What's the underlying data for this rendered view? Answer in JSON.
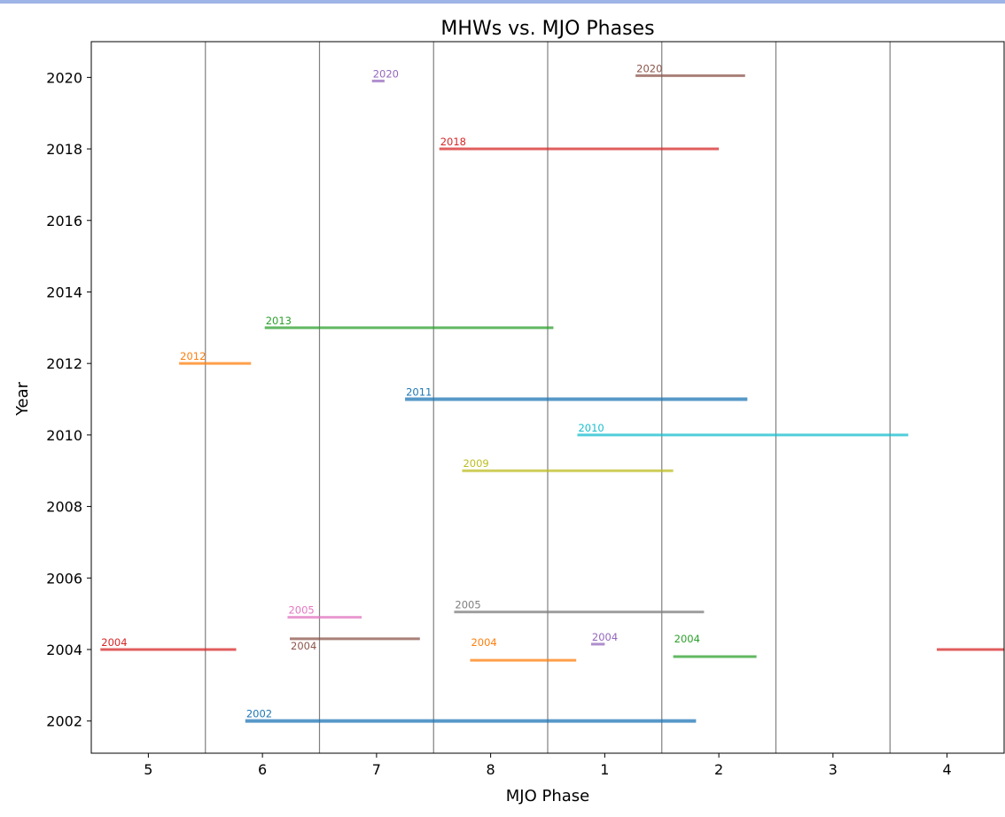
{
  "chart_data": {
    "type": "line",
    "title": "MHWs vs. MJO Phases",
    "xlabel": "MJO Phase",
    "ylabel": "Year",
    "xlim": [
      -0.5,
      7.5
    ],
    "ylim": [
      2001.1,
      2021.0
    ],
    "x_ticks": [
      {
        "pos": 0,
        "label": "5"
      },
      {
        "pos": 1,
        "label": "6"
      },
      {
        "pos": 2,
        "label": "7"
      },
      {
        "pos": 3,
        "label": "8"
      },
      {
        "pos": 4,
        "label": "1"
      },
      {
        "pos": 5,
        "label": "2"
      },
      {
        "pos": 6,
        "label": "3"
      },
      {
        "pos": 7,
        "label": "4"
      }
    ],
    "y_ticks": [
      2002,
      2004,
      2006,
      2008,
      2010,
      2012,
      2014,
      2016,
      2018,
      2020
    ],
    "phase_boundaries": [
      0.5,
      1.5,
      2.5,
      3.5,
      4.5,
      5.5,
      6.5
    ],
    "grid": false,
    "legend": "none",
    "series": [
      {
        "label": "2002",
        "x_start": 0.85,
        "x_end": 4.8,
        "y": 2002.0,
        "color": "#1f77b4",
        "width": 4
      },
      {
        "label": "2004",
        "x_start": -0.42,
        "x_end": 0.77,
        "y": 2004.0,
        "color": "#d62728",
        "width": 3
      },
      {
        "label": "2004",
        "x_start": 6.91,
        "x_end": 7.5,
        "y": 2004.0,
        "color": "#d62728",
        "width": 3,
        "show_label": false
      },
      {
        "label": "2004",
        "x_start": 1.24,
        "x_end": 2.38,
        "y": 2004.3,
        "color": "#8c564b",
        "width": 3,
        "label_below": true
      },
      {
        "label": "2004",
        "x_start": 2.82,
        "x_end": 3.75,
        "y": 2003.7,
        "color": "#ff7f0e",
        "width": 3,
        "label_above_gap": true
      },
      {
        "label": "2004",
        "x_start": 3.88,
        "x_end": 4.0,
        "y": 2004.15,
        "color": "#9467bd",
        "width": 3
      },
      {
        "label": "2004",
        "x_start": 4.6,
        "x_end": 5.33,
        "y": 2003.8,
        "color": "#2ca02c",
        "width": 3,
        "label_above_gap": true
      },
      {
        "label": "2005",
        "x_start": 1.22,
        "x_end": 1.87,
        "y": 2004.9,
        "color": "#e377c2",
        "width": 3
      },
      {
        "label": "2005",
        "x_start": 2.68,
        "x_end": 4.87,
        "y": 2005.05,
        "color": "#7f7f7f",
        "width": 3
      },
      {
        "label": "2009",
        "x_start": 2.75,
        "x_end": 4.6,
        "y": 2009.0,
        "color": "#bcbd22",
        "width": 3
      },
      {
        "label": "2010",
        "x_start": 3.76,
        "x_end": 6.66,
        "y": 2010.0,
        "color": "#17becf",
        "width": 3
      },
      {
        "label": "2011",
        "x_start": 2.25,
        "x_end": 5.25,
        "y": 2011.0,
        "color": "#1f77b4",
        "width": 4
      },
      {
        "label": "2012",
        "x_start": 0.27,
        "x_end": 0.9,
        "y": 2012.0,
        "color": "#ff7f0e",
        "width": 3
      },
      {
        "label": "2013",
        "x_start": 1.02,
        "x_end": 3.55,
        "y": 2013.0,
        "color": "#2ca02c",
        "width": 3
      },
      {
        "label": "2018",
        "x_start": 2.55,
        "x_end": 5.0,
        "y": 2018.0,
        "color": "#d62728",
        "width": 3
      },
      {
        "label": "2020",
        "x_start": 1.96,
        "x_end": 2.07,
        "y": 2019.9,
        "color": "#9467bd",
        "width": 3
      },
      {
        "label": "2020",
        "x_start": 4.27,
        "x_end": 5.23,
        "y": 2020.05,
        "color": "#8c564b",
        "width": 3
      }
    ]
  }
}
